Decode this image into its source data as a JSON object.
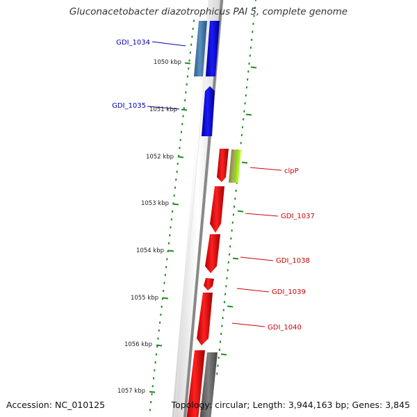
{
  "title": "Gluconacetobacter diazotrophicus PAI 5, complete genome",
  "accession": "Accession: NC_010125",
  "topology": "Topology: circular; Length: 3,944,163 bp; Genes: 3,845",
  "colors": {
    "forward_strand": "#ff0000",
    "reverse_strand": "#0000ff",
    "reverse_strand_alt": "#4682b4",
    "other_feature": "#696969",
    "gc_skew_marks": "#228b22",
    "label_forward": "#cc0000",
    "label_reverse": "#0000aa"
  },
  "kbp_ticks": [
    "1050 kbp",
    "1051 kbp",
    "1052 kbp",
    "1053 kbp",
    "1054 kbp",
    "1055 kbp",
    "1056 kbp",
    "1057 kbp"
  ],
  "gene_labels": [
    {
      "name": "GDI_1034",
      "strand": "reverse"
    },
    {
      "name": "GDI_1035",
      "strand": "reverse"
    },
    {
      "name": "clpP",
      "strand": "forward"
    },
    {
      "name": "GDI_1037",
      "strand": "forward"
    },
    {
      "name": "GDI_1038",
      "strand": "forward"
    },
    {
      "name": "GDI_1039",
      "strand": "forward"
    },
    {
      "name": "GDI_1040",
      "strand": "forward"
    }
  ]
}
